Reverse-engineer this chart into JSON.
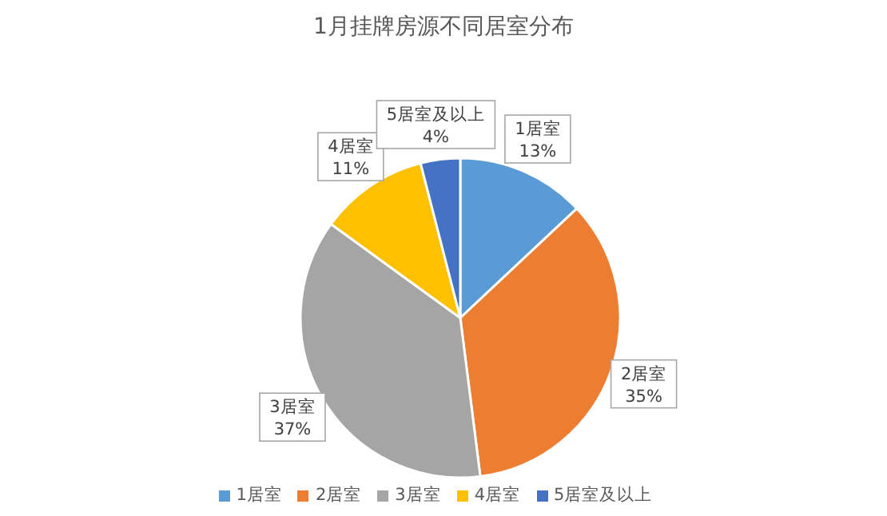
{
  "chart_data": {
    "type": "pie",
    "title": "1月挂牌房源不同居室分布",
    "categories": [
      "1居室",
      "2居室",
      "3居室",
      "4居室",
      "5居室及以上"
    ],
    "values": [
      13,
      35,
      37,
      11,
      4
    ],
    "colors": [
      "#5b9bd5",
      "#ed7d31",
      "#a5a5a5",
      "#ffc000",
      "#4472c4"
    ],
    "value_labels": [
      "13%",
      "35%",
      "37%",
      "11%",
      "4%"
    ],
    "legend": "bottom"
  }
}
